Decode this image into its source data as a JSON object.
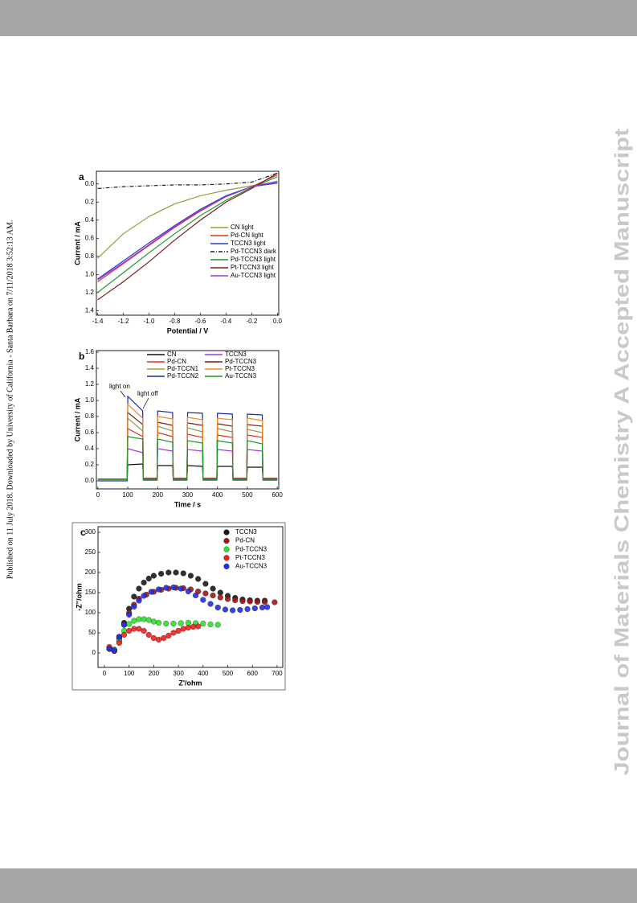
{
  "sidebar": {
    "left": "Published on 11 July 2018. Downloaded by University of California - Santa Barbara on 7/11/2018 3:52:13 AM.",
    "right": "Journal of Materials Chemistry A Accepted Manuscript"
  },
  "chart_data": [
    {
      "type": "line",
      "panel": "a",
      "xlabel": "Potential / V",
      "ylabel": "Current / mA",
      "xlim": [
        -1.41,
        0.01
      ],
      "ylim": [
        -0.14,
        1.45
      ],
      "y_inverted": true,
      "xticks": [
        -1.4,
        -1.2,
        {
          "value": -1.0,
          "label": "-1.0"
        },
        -0.8,
        -0.6,
        -0.4,
        -0.2,
        {
          "value": 0,
          "label": "0.0"
        }
      ],
      "yticks": [
        {
          "value": 0,
          "label": "0.0"
        },
        0.2,
        0.4,
        0.6,
        0.8,
        {
          "value": 1.0,
          "label": "1.0"
        },
        1.2,
        1.4
      ],
      "x": [
        -1.4,
        -1.2,
        -1.0,
        -0.8,
        -0.6,
        -0.4,
        -0.2,
        0.0
      ],
      "series": [
        {
          "name": "CN light",
          "color": "#9a9a3c",
          "values": [
            0.82,
            0.55,
            0.36,
            0.22,
            0.13,
            0.07,
            0.02,
            -0.02
          ]
        },
        {
          "name": "Pd-CN light",
          "color": "#e0302a",
          "values": [
            1.08,
            0.88,
            0.68,
            0.48,
            0.3,
            0.14,
            0.03,
            -0.1
          ]
        },
        {
          "name": "TCCN3 light",
          "color": "#2a3ac8",
          "values": [
            1.05,
            0.85,
            0.65,
            0.46,
            0.28,
            0.13,
            0.03,
            -0.01
          ]
        },
        {
          "name": "Pd-TCCN3 dark",
          "color": "#222222",
          "dash": "dash-dot",
          "values": [
            0.05,
            0.03,
            0.02,
            0.01,
            0.01,
            0.0,
            -0.02,
            -0.12
          ]
        },
        {
          "name": "Pd-TCCN3 light",
          "color": "#1a9a2a",
          "values": [
            1.2,
            0.98,
            0.76,
            0.55,
            0.35,
            0.18,
            0.04,
            -0.08
          ]
        },
        {
          "name": "Pt-TCCN3 light",
          "color": "#7a1c1c",
          "values": [
            1.28,
            1.08,
            0.86,
            0.62,
            0.4,
            0.2,
            0.05,
            -0.12
          ]
        },
        {
          "name": "Au-TCCN3 light",
          "color": "#9a3ae0",
          "values": [
            1.06,
            0.87,
            0.67,
            0.47,
            0.29,
            0.14,
            0.03,
            -0.03
          ]
        }
      ]
    },
    {
      "type": "line",
      "panel": "b",
      "xlabel": "Time / s",
      "ylabel": "Current / mA",
      "xlim": [
        -5,
        605
      ],
      "ylim": [
        -0.1,
        1.62
      ],
      "xticks": [
        0,
        100,
        200,
        300,
        400,
        500,
        600
      ],
      "yticks": [
        {
          "value": 0,
          "label": "0.0"
        },
        0.2,
        0.4,
        0.6,
        0.8,
        {
          "value": 1.0,
          "label": "1.0"
        },
        1.2,
        1.4,
        1.6
      ],
      "annotations": [
        "light on",
        "light off"
      ],
      "x": [
        0,
        98,
        100,
        150,
        152,
        198,
        200,
        250,
        252,
        298,
        300,
        350,
        352,
        398,
        400,
        450,
        452,
        498,
        500,
        550,
        552,
        600
      ],
      "series": [
        {
          "name": "CN",
          "color": "#111111",
          "values": [
            0.02,
            0.02,
            0.2,
            0.21,
            0.02,
            0.02,
            0.19,
            0.19,
            0.02,
            0.02,
            0.19,
            0.18,
            0.02,
            0.02,
            0.18,
            0.18,
            0.02,
            0.02,
            0.17,
            0.17,
            0.02,
            0.02
          ]
        },
        {
          "name": "Pd-CN",
          "color": "#e0302a",
          "values": [
            0.02,
            0.02,
            0.65,
            0.55,
            0.03,
            0.03,
            0.6,
            0.55,
            0.03,
            0.03,
            0.58,
            0.54,
            0.03,
            0.03,
            0.57,
            0.54,
            0.03,
            0.03,
            0.57,
            0.54,
            0.03,
            0.03
          ]
        },
        {
          "name": "Pd-TCCN1",
          "color": "#9a9a3c",
          "values": [
            0.02,
            0.02,
            0.78,
            0.62,
            0.03,
            0.03,
            0.68,
            0.62,
            0.03,
            0.03,
            0.66,
            0.61,
            0.03,
            0.03,
            0.65,
            0.61,
            0.03,
            0.03,
            0.64,
            0.6,
            0.03,
            0.03
          ]
        },
        {
          "name": "Pd-TCCN2",
          "color": "#1c2aa0",
          "values": [
            0.0,
            0.0,
            1.05,
            0.87,
            0.01,
            0.01,
            0.87,
            0.85,
            0.01,
            0.01,
            0.85,
            0.84,
            0.01,
            0.01,
            0.84,
            0.83,
            0.01,
            0.01,
            0.83,
            0.82,
            0.01,
            0.01
          ]
        },
        {
          "name": "TCCN3",
          "color": "#9a3ae0",
          "values": [
            0.02,
            0.02,
            0.4,
            0.35,
            0.02,
            0.02,
            0.4,
            0.37,
            0.02,
            0.02,
            0.39,
            0.37,
            0.02,
            0.02,
            0.39,
            0.37,
            0.02,
            0.02,
            0.39,
            0.37,
            0.02,
            0.02
          ]
        },
        {
          "name": "Pd-TCCN3",
          "color": "#7a1c1c",
          "values": [
            0.02,
            0.02,
            0.85,
            0.7,
            0.03,
            0.03,
            0.73,
            0.69,
            0.03,
            0.03,
            0.72,
            0.69,
            0.03,
            0.03,
            0.71,
            0.68,
            0.03,
            0.03,
            0.7,
            0.68,
            0.03,
            0.03
          ]
        },
        {
          "name": "Pt-TCCN3",
          "color": "#f08a20",
          "values": [
            0.02,
            0.02,
            0.95,
            0.78,
            0.02,
            0.02,
            0.8,
            0.77,
            0.02,
            0.02,
            0.79,
            0.76,
            0.02,
            0.02,
            0.78,
            0.76,
            0.02,
            0.02,
            0.78,
            0.75,
            0.02,
            0.02
          ]
        },
        {
          "name": "Au-TCCN3",
          "color": "#1a9a2a",
          "values": [
            0.02,
            0.02,
            0.55,
            0.52,
            0.02,
            0.02,
            0.52,
            0.48,
            0.02,
            0.02,
            0.5,
            0.47,
            0.02,
            0.02,
            0.5,
            0.47,
            0.02,
            0.02,
            0.5,
            0.46,
            0.02,
            0.02
          ]
        }
      ]
    },
    {
      "type": "scatter",
      "panel": "c",
      "xlabel": "Z'/ohm",
      "ylabel": "-Z''/ohm",
      "xlim": [
        -26,
        723
      ],
      "ylim": [
        -36,
        314
      ],
      "xticks": [
        0,
        100,
        200,
        300,
        400,
        500,
        600,
        700
      ],
      "yticks": [
        0,
        50,
        100,
        150,
        200,
        250,
        300
      ],
      "series": [
        {
          "name": "TCCN3",
          "color": "#1a1a1a",
          "x": [
            20,
            40,
            60,
            80,
            100,
            120,
            140,
            160,
            180,
            200,
            230,
            260,
            290,
            320,
            350,
            380,
            410,
            440,
            470,
            500,
            530,
            560,
            590,
            620,
            650
          ],
          "values": [
            10,
            5,
            40,
            75,
            110,
            140,
            160,
            175,
            185,
            192,
            197,
            200,
            200,
            198,
            192,
            184,
            172,
            160,
            150,
            142,
            137,
            133,
            131,
            130,
            130
          ]
        },
        {
          "name": "Pd-CN",
          "color": "#a01818",
          "x": [
            20,
            40,
            60,
            80,
            100,
            120,
            140,
            170,
            200,
            230,
            260,
            290,
            320,
            350,
            380,
            410,
            440,
            470,
            500,
            530,
            560,
            590,
            620,
            650,
            690
          ],
          "values": [
            12,
            8,
            35,
            70,
            100,
            120,
            135,
            145,
            152,
            157,
            160,
            162,
            161,
            158,
            153,
            148,
            143,
            138,
            134,
            131,
            129,
            128,
            127,
            127,
            126
          ]
        },
        {
          "name": "Pd-TCCN3",
          "color": "#30e030",
          "x": [
            20,
            40,
            60,
            80,
            100,
            120,
            140,
            160,
            180,
            200,
            220,
            250,
            280,
            310,
            340,
            370,
            400,
            430,
            460
          ],
          "values": [
            12,
            8,
            30,
            55,
            72,
            80,
            84,
            84,
            82,
            78,
            75,
            73,
            73,
            74,
            75,
            74,
            73,
            71,
            70
          ]
        },
        {
          "name": "Pt-TCCN3",
          "color": "#f02020",
          "x": [
            20,
            40,
            60,
            80,
            100,
            120,
            140,
            160,
            180,
            200,
            220,
            240,
            260,
            280,
            300,
            320,
            340,
            360,
            380
          ],
          "values": [
            15,
            5,
            25,
            45,
            55,
            60,
            60,
            55,
            45,
            37,
            33,
            37,
            43,
            50,
            55,
            60,
            63,
            65,
            66
          ]
        },
        {
          "name": "Au-TCCN3",
          "color": "#2030e0",
          "x": [
            20,
            40,
            60,
            80,
            100,
            120,
            140,
            160,
            190,
            220,
            250,
            280,
            310,
            340,
            370,
            400,
            430,
            460,
            490,
            520,
            550,
            580,
            610,
            640,
            660
          ],
          "values": [
            10,
            6,
            40,
            70,
            95,
            115,
            130,
            142,
            152,
            158,
            162,
            163,
            160,
            153,
            143,
            132,
            122,
            113,
            108,
            106,
            107,
            109,
            111,
            113,
            114
          ]
        }
      ]
    }
  ]
}
